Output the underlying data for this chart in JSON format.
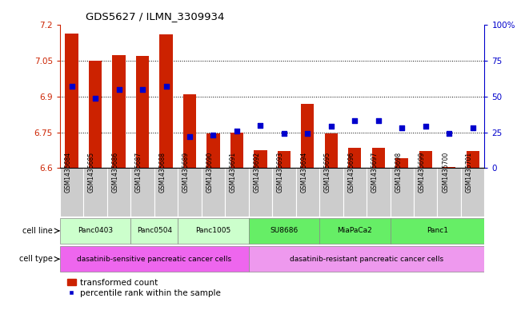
{
  "title": "GDS5627 / ILMN_3309934",
  "samples": [
    "GSM1435684",
    "GSM1435685",
    "GSM1435686",
    "GSM1435687",
    "GSM1435688",
    "GSM1435689",
    "GSM1435690",
    "GSM1435691",
    "GSM1435692",
    "GSM1435693",
    "GSM1435694",
    "GSM1435695",
    "GSM1435696",
    "GSM1435697",
    "GSM1435698",
    "GSM1435699",
    "GSM1435700",
    "GSM1435701"
  ],
  "bar_values": [
    7.165,
    7.05,
    7.075,
    7.07,
    7.16,
    6.91,
    6.745,
    6.75,
    6.675,
    6.672,
    6.87,
    6.745,
    6.685,
    6.685,
    6.64,
    6.67,
    6.605,
    6.67
  ],
  "percentile_values": [
    57,
    49,
    55,
    55,
    57,
    22,
    23,
    26,
    30,
    24,
    24,
    29,
    33,
    33,
    28,
    29,
    24,
    28
  ],
  "ylim_left": [
    6.6,
    7.2
  ],
  "ylim_right": [
    0,
    100
  ],
  "yticks_left": [
    6.6,
    6.75,
    6.9,
    7.05,
    7.2
  ],
  "yticks_right": [
    0,
    25,
    50,
    75,
    100
  ],
  "bar_color": "#cc2200",
  "dot_color": "#0000cc",
  "cell_lines": [
    {
      "label": "Panc0403",
      "start": 0,
      "end": 2,
      "color": "#ccffcc"
    },
    {
      "label": "Panc0504",
      "start": 3,
      "end": 4,
      "color": "#ccffcc"
    },
    {
      "label": "Panc1005",
      "start": 5,
      "end": 7,
      "color": "#ccffcc"
    },
    {
      "label": "SU8686",
      "start": 8,
      "end": 10,
      "color": "#66ee66"
    },
    {
      "label": "MiaPaCa2",
      "start": 11,
      "end": 13,
      "color": "#66ee66"
    },
    {
      "label": "Panc1",
      "start": 14,
      "end": 17,
      "color": "#66ee66"
    }
  ],
  "cell_type_sensitive": {
    "label": "dasatinib-sensitive pancreatic cancer cells",
    "start": 0,
    "end": 7,
    "color": "#ee66ee"
  },
  "cell_type_resistant": {
    "label": "dasatinib-resistant pancreatic cancer cells",
    "start": 8,
    "end": 17,
    "color": "#ee99ee"
  },
  "legend_bar_label": "transformed count",
  "legend_dot_label": "percentile rank within the sample",
  "cell_line_label": "cell line",
  "cell_type_label": "cell type",
  "bar_baseline": 6.6,
  "sample_box_color": "#cccccc",
  "bar_width": 0.55
}
